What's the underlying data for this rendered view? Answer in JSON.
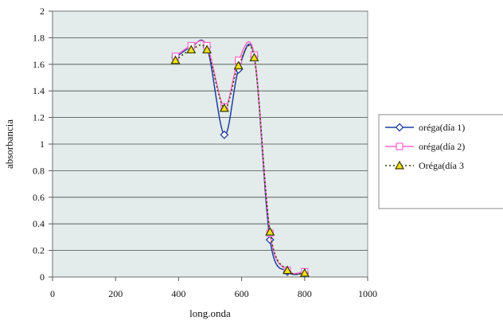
{
  "chart_data": {
    "type": "line",
    "xlabel": "long.onda",
    "ylabel": "absorbancia",
    "xlim": [
      0,
      1000
    ],
    "ylim": [
      0,
      2
    ],
    "x_ticks": [
      "0",
      "200",
      "400",
      "600",
      "800",
      "1000"
    ],
    "y_ticks": [
      "0",
      "0.2",
      "0.4",
      "0.6",
      "0.8",
      "1",
      "1.2",
      "1.4",
      "1.6",
      "1.8",
      "2"
    ],
    "grid": true,
    "legend_position": "right",
    "plot_background": "#e3ecea",
    "series": [
      {
        "name": "oréga(día 1)",
        "color": "#1f3fa0",
        "marker": "diamond",
        "line_style": "solid",
        "x": [
          390,
          440,
          490,
          545,
          590,
          640,
          690,
          745,
          800
        ],
        "y": [
          1.65,
          1.73,
          1.73,
          1.07,
          1.56,
          1.66,
          0.28,
          0.04,
          0.03
        ]
      },
      {
        "name": "oréga(día 2)",
        "color": "#ff66cc",
        "marker": "square",
        "line_style": "solid",
        "x": [
          390,
          440,
          490,
          545,
          590,
          640,
          690,
          745,
          800
        ],
        "y": [
          1.66,
          1.74,
          1.74,
          1.28,
          1.63,
          1.67,
          0.33,
          0.05,
          0.04
        ]
      },
      {
        "name": "Oréga(día 3",
        "color": "#333a00",
        "marker_fill": "#f2e01c",
        "marker": "triangle",
        "line_style": "dotted",
        "x": [
          390,
          440,
          490,
          545,
          590,
          640,
          690,
          745,
          800
        ],
        "y": [
          1.63,
          1.71,
          1.71,
          1.27,
          1.59,
          1.65,
          0.34,
          0.05,
          0.03
        ]
      }
    ]
  }
}
